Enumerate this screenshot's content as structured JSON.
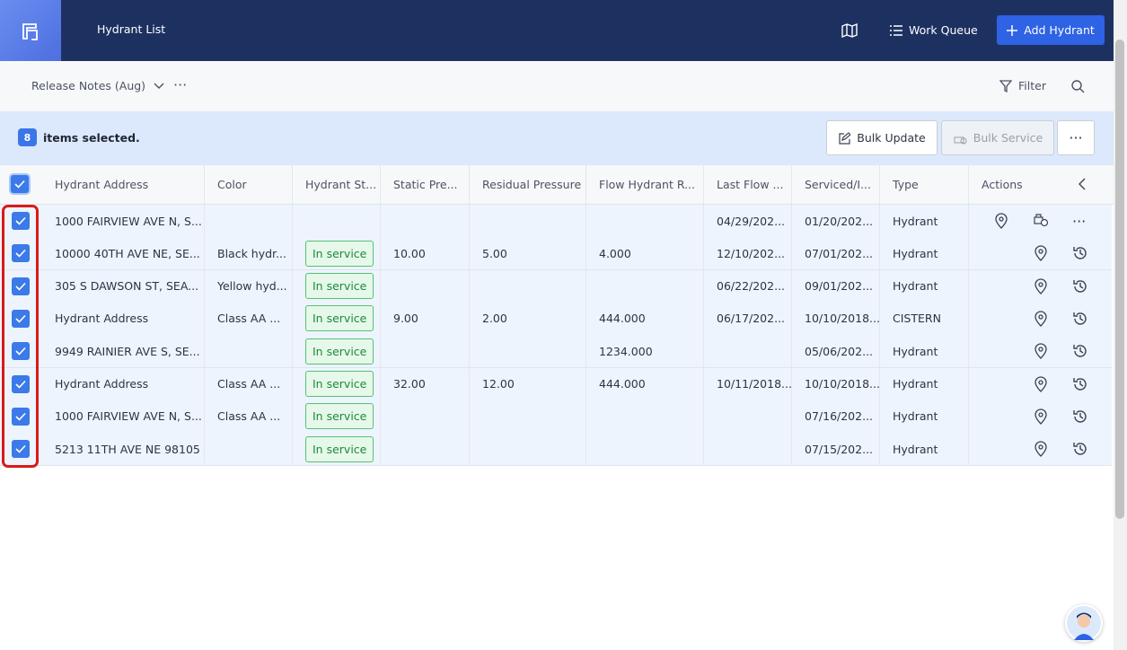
{
  "header": {
    "title": "Hydrant List",
    "work_queue": "Work Queue",
    "add_hydrant": "Add Hydrant"
  },
  "toolbar": {
    "view": "Release Notes (Aug)",
    "filter": "Filter"
  },
  "selection": {
    "count": 8,
    "label": "items selected.",
    "bulk_update": "Bulk Update",
    "bulk_service": "Bulk Service"
  },
  "table": {
    "columns": [
      "Hydrant Address",
      "Color",
      "Hydrant St...",
      "Static Pre...",
      "Residual Pressure",
      "Flow Hydrant R...",
      "Last Flow ...",
      "Serviced/I...",
      "Type",
      "Actions"
    ],
    "rows": [
      [
        "1000 FAIRVIEW AVE N, S...",
        null,
        null,
        null,
        null,
        null,
        "04/29/202...",
        "01/20/202...",
        "Hydrant"
      ],
      [
        "10000 40TH AVE NE, SE...",
        "Black hydr...",
        "In service",
        "10.00",
        "5.00",
        "4.000",
        "12/10/202...",
        "07/01/202...",
        "Hydrant"
      ],
      [
        "305 S DAWSON ST, SEA...",
        "Yellow hyd...",
        "In service",
        null,
        null,
        null,
        "06/22/202...",
        "09/01/202...",
        "Hydrant"
      ],
      [
        "Hydrant Address",
        "Class AA ...",
        "In service",
        "9.00",
        "2.00",
        "444.000",
        "06/17/202...",
        "10/10/2018...",
        "CISTERN"
      ],
      [
        "9949 RAINIER AVE S, SE...",
        null,
        "In service",
        null,
        null,
        "1234.000",
        null,
        "05/06/202...",
        "Hydrant"
      ],
      [
        "Hydrant Address",
        "Class AA ...",
        "In service",
        "32.00",
        "12.00",
        "444.000",
        "10/11/2018...",
        "10/10/2018...",
        "Hydrant"
      ],
      [
        "1000 FAIRVIEW AVE N, S...",
        "Class AA ...",
        "In service",
        null,
        null,
        null,
        null,
        "07/16/202...",
        "Hydrant"
      ],
      [
        "5213 11TH AVE NE 98105",
        null,
        "In service",
        null,
        null,
        null,
        null,
        "07/15/202...",
        "Hydrant"
      ]
    ]
  }
}
